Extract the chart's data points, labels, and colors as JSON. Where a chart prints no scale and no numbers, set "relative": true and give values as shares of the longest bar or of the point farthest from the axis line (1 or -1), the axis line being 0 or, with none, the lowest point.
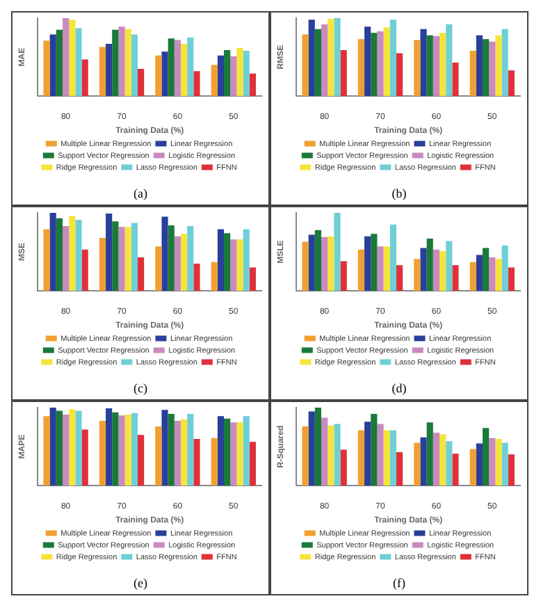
{
  "chart_data": [
    {
      "type": "bar",
      "relative": true,
      "xlabel": "Training Data (%)",
      "ylabel": "MAE",
      "categories": [
        "80",
        "70",
        "60",
        "50"
      ],
      "legend": "bottom",
      "annotations": [
        "(a)"
      ],
      "series": [
        {
          "name": "Multiple Linear Regression",
          "color": "#f0a030",
          "values": [
            0.71,
            0.63,
            0.52,
            0.4
          ]
        },
        {
          "name": "Linear Regression",
          "color": "#2a3f9a",
          "values": [
            0.79,
            0.67,
            0.57,
            0.52
          ]
        },
        {
          "name": "Support Vector Regression",
          "color": "#1a7a3a",
          "values": [
            0.85,
            0.85,
            0.74,
            0.59
          ]
        },
        {
          "name": "Logistic Regression",
          "color": "#c98ac0",
          "values": [
            1,
            0.89,
            0.72,
            0.51
          ]
        },
        {
          "name": "Ridge Regression",
          "color": "#f5e43a",
          "values": [
            0.98,
            0.86,
            0.67,
            0.62
          ]
        },
        {
          "name": "Lasso Regression",
          "color": "#6fcfd6",
          "values": [
            0.87,
            0.79,
            0.75,
            0.58
          ]
        },
        {
          "name": "FFNN",
          "color": "#e0303a",
          "values": [
            0.47,
            0.35,
            0.32,
            0.29
          ]
        }
      ]
    },
    {
      "type": "bar",
      "relative": true,
      "xlabel": "Training Data (%)",
      "ylabel": "RMSE",
      "categories": [
        "80",
        "70",
        "60",
        "50"
      ],
      "legend": "bottom",
      "annotations": [
        "(b)"
      ],
      "series": [
        {
          "name": "Multiple Linear Regression",
          "color": "#f0a030",
          "values": [
            0.79,
            0.73,
            0.72,
            0.58
          ]
        },
        {
          "name": "Linear Regression",
          "color": "#2a3f9a",
          "values": [
            0.98,
            0.89,
            0.86,
            0.78
          ]
        },
        {
          "name": "Support Vector Regression",
          "color": "#1a7a3a",
          "values": [
            0.86,
            0.81,
            0.78,
            0.73
          ]
        },
        {
          "name": "Logistic Regression",
          "color": "#c98ac0",
          "values": [
            0.92,
            0.83,
            0.77,
            0.7
          ]
        },
        {
          "name": "Ridge Regression",
          "color": "#f5e43a",
          "values": [
            0.99,
            0.88,
            0.81,
            0.78
          ]
        },
        {
          "name": "Lasso Regression",
          "color": "#6fcfd6",
          "values": [
            1,
            0.98,
            0.92,
            0.86
          ]
        },
        {
          "name": "FFNN",
          "color": "#e0303a",
          "values": [
            0.59,
            0.55,
            0.43,
            0.33
          ]
        }
      ]
    },
    {
      "type": "bar",
      "relative": true,
      "xlabel": "Training Data (%)",
      "ylabel": "MSE",
      "categories": [
        "80",
        "70",
        "60",
        "50"
      ],
      "legend": "bottom",
      "annotations": [
        "(c)"
      ],
      "series": [
        {
          "name": "Multiple Linear Regression",
          "color": "#f0a030",
          "values": [
            0.79,
            0.68,
            0.57,
            0.37
          ]
        },
        {
          "name": "Linear Regression",
          "color": "#2a3f9a",
          "values": [
            1,
            0.99,
            0.95,
            0.79
          ]
        },
        {
          "name": "Support Vector Regression",
          "color": "#1a7a3a",
          "values": [
            0.93,
            0.89,
            0.84,
            0.74
          ]
        },
        {
          "name": "Logistic Regression",
          "color": "#c98ac0",
          "values": [
            0.83,
            0.82,
            0.7,
            0.66
          ]
        },
        {
          "name": "Ridge Regression",
          "color": "#f5e43a",
          "values": [
            0.96,
            0.82,
            0.73,
            0.66
          ]
        },
        {
          "name": "Lasso Regression",
          "color": "#6fcfd6",
          "values": [
            0.91,
            0.87,
            0.83,
            0.79
          ]
        },
        {
          "name": "FFNN",
          "color": "#e0303a",
          "values": [
            0.53,
            0.43,
            0.35,
            0.3
          ]
        }
      ]
    },
    {
      "type": "bar",
      "relative": true,
      "xlabel": "Training Data (%)",
      "ylabel": "MSLE",
      "categories": [
        "80",
        "70",
        "60",
        "50"
      ],
      "legend": "bottom",
      "annotations": [
        "(d)"
      ],
      "series": [
        {
          "name": "Multiple Linear Regression",
          "color": "#f0a030",
          "values": [
            0.63,
            0.53,
            0.41,
            0.37
          ]
        },
        {
          "name": "Linear Regression",
          "color": "#2a3f9a",
          "values": [
            0.72,
            0.7,
            0.55,
            0.46
          ]
        },
        {
          "name": "Support Vector Regression",
          "color": "#1a7a3a",
          "values": [
            0.78,
            0.73,
            0.67,
            0.55
          ]
        },
        {
          "name": "Logistic Regression",
          "color": "#c98ac0",
          "values": [
            0.69,
            0.57,
            0.53,
            0.43
          ]
        },
        {
          "name": "Ridge Regression",
          "color": "#f5e43a",
          "values": [
            0.7,
            0.57,
            0.51,
            0.41
          ]
        },
        {
          "name": "Lasso Regression",
          "color": "#6fcfd6",
          "values": [
            1,
            0.85,
            0.64,
            0.58
          ]
        },
        {
          "name": "FFNN",
          "color": "#e0303a",
          "values": [
            0.38,
            0.33,
            0.33,
            0.3
          ]
        }
      ]
    },
    {
      "type": "bar",
      "relative": true,
      "xlabel": "Training Data (%)",
      "ylabel": "MAPE",
      "categories": [
        "80",
        "70",
        "60",
        "50"
      ],
      "legend": "bottom",
      "annotations": [
        "(e)"
      ],
      "series": [
        {
          "name": "Multiple Linear Regression",
          "color": "#f0a030",
          "values": [
            0.89,
            0.83,
            0.76,
            0.61
          ]
        },
        {
          "name": "Linear Regression",
          "color": "#2a3f9a",
          "values": [
            1,
            0.99,
            0.97,
            0.89
          ]
        },
        {
          "name": "Support Vector Regression",
          "color": "#1a7a3a",
          "values": [
            0.96,
            0.94,
            0.92,
            0.86
          ]
        },
        {
          "name": "Logistic Regression",
          "color": "#c98ac0",
          "values": [
            0.91,
            0.9,
            0.83,
            0.81
          ]
        },
        {
          "name": "Ridge Regression",
          "color": "#f5e43a",
          "values": [
            0.98,
            0.91,
            0.85,
            0.81
          ]
        },
        {
          "name": "Lasso Regression",
          "color": "#6fcfd6",
          "values": [
            0.96,
            0.93,
            0.92,
            0.89
          ]
        },
        {
          "name": "FFNN",
          "color": "#e0303a",
          "values": [
            0.72,
            0.65,
            0.6,
            0.56
          ]
        }
      ]
    },
    {
      "type": "bar",
      "relative": true,
      "xlabel": "Training Data (%)",
      "ylabel": "R-Squared",
      "categories": [
        "80",
        "70",
        "60",
        "50"
      ],
      "legend": "bottom",
      "annotations": [
        "(f)"
      ],
      "series": [
        {
          "name": "Multiple Linear Regression",
          "color": "#f0a030",
          "values": [
            0.76,
            0.71,
            0.55,
            0.47
          ]
        },
        {
          "name": "Linear Regression",
          "color": "#2a3f9a",
          "values": [
            0.95,
            0.82,
            0.62,
            0.54
          ]
        },
        {
          "name": "Support Vector Regression",
          "color": "#1a7a3a",
          "values": [
            1,
            0.92,
            0.81,
            0.74
          ]
        },
        {
          "name": "Logistic Regression",
          "color": "#c98ac0",
          "values": [
            0.87,
            0.79,
            0.68,
            0.61
          ]
        },
        {
          "name": "Ridge Regression",
          "color": "#f5e43a",
          "values": [
            0.77,
            0.71,
            0.66,
            0.6
          ]
        },
        {
          "name": "Lasso Regression",
          "color": "#6fcfd6",
          "values": [
            0.79,
            0.71,
            0.57,
            0.55
          ]
        },
        {
          "name": "FFNN",
          "color": "#e0303a",
          "values": [
            0.46,
            0.43,
            0.41,
            0.4
          ]
        }
      ]
    }
  ]
}
